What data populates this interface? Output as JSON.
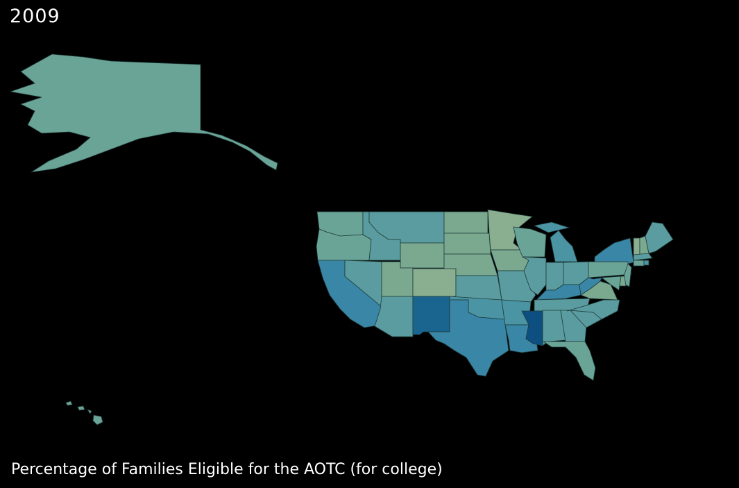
{
  "year": "2009",
  "caption": "Percentage of Families Eligible for the AOTC (for college)",
  "chart_data": {
    "type": "choropleth",
    "background": "#000000",
    "scale_colors": [
      "#8aae90",
      "#7aa990",
      "#6aa497",
      "#5a9c9f",
      "#4a94a4",
      "#3a86a6",
      "#1a6590",
      "#0c4f80"
    ],
    "regions": [
      {
        "id": "AK",
        "fill": "#6aa497"
      },
      {
        "id": "HI",
        "fill": "#6aa497"
      },
      {
        "id": "WA",
        "fill": "#6aa497"
      },
      {
        "id": "OR",
        "fill": "#6aa497"
      },
      {
        "id": "CA",
        "fill": "#3a86a6"
      },
      {
        "id": "ID",
        "fill": "#5a9c9f"
      },
      {
        "id": "NV",
        "fill": "#5a9c9f"
      },
      {
        "id": "MT",
        "fill": "#5a9c9f"
      },
      {
        "id": "WY",
        "fill": "#7aa990"
      },
      {
        "id": "UT",
        "fill": "#7aa990"
      },
      {
        "id": "AZ",
        "fill": "#5a9c9f"
      },
      {
        "id": "CO",
        "fill": "#8aae90"
      },
      {
        "id": "NM",
        "fill": "#1a6590"
      },
      {
        "id": "ND",
        "fill": "#7aa990"
      },
      {
        "id": "SD",
        "fill": "#7aa990"
      },
      {
        "id": "NE",
        "fill": "#7aa990"
      },
      {
        "id": "KS",
        "fill": "#5a9c9f"
      },
      {
        "id": "OK",
        "fill": "#4a94a4"
      },
      {
        "id": "TX",
        "fill": "#3a86a6"
      },
      {
        "id": "MN",
        "fill": "#8aae90"
      },
      {
        "id": "IA",
        "fill": "#7aa990"
      },
      {
        "id": "MO",
        "fill": "#5a9c9f"
      },
      {
        "id": "AR",
        "fill": "#4a94a4"
      },
      {
        "id": "LA",
        "fill": "#3a86a6"
      },
      {
        "id": "WI",
        "fill": "#6aa497"
      },
      {
        "id": "IL",
        "fill": "#5a9c9f"
      },
      {
        "id": "MI",
        "fill": "#4a94a4"
      },
      {
        "id": "IN",
        "fill": "#5a9c9f"
      },
      {
        "id": "OH",
        "fill": "#5a9c9f"
      },
      {
        "id": "KY",
        "fill": "#3a86a6"
      },
      {
        "id": "TN",
        "fill": "#5a9c9f"
      },
      {
        "id": "MS",
        "fill": "#0c4f80"
      },
      {
        "id": "AL",
        "fill": "#5a9c9f"
      },
      {
        "id": "GA",
        "fill": "#5a9c9f"
      },
      {
        "id": "FL",
        "fill": "#6aa497"
      },
      {
        "id": "SC",
        "fill": "#5a9c9f"
      },
      {
        "id": "NC",
        "fill": "#5a9c9f"
      },
      {
        "id": "VA",
        "fill": "#7aa990"
      },
      {
        "id": "WV",
        "fill": "#3a86a6"
      },
      {
        "id": "PA",
        "fill": "#6aa497"
      },
      {
        "id": "NY",
        "fill": "#3a86a6"
      },
      {
        "id": "NJ",
        "fill": "#6aa497"
      },
      {
        "id": "MD",
        "fill": "#6aa497"
      },
      {
        "id": "DE",
        "fill": "#7aa990"
      },
      {
        "id": "VT",
        "fill": "#8aae90"
      },
      {
        "id": "NH",
        "fill": "#7aa990"
      },
      {
        "id": "ME",
        "fill": "#5a9c9f"
      },
      {
        "id": "MA",
        "fill": "#5a9c9f"
      },
      {
        "id": "CT",
        "fill": "#6aa497"
      },
      {
        "id": "RI",
        "fill": "#4a94a4"
      }
    ]
  }
}
